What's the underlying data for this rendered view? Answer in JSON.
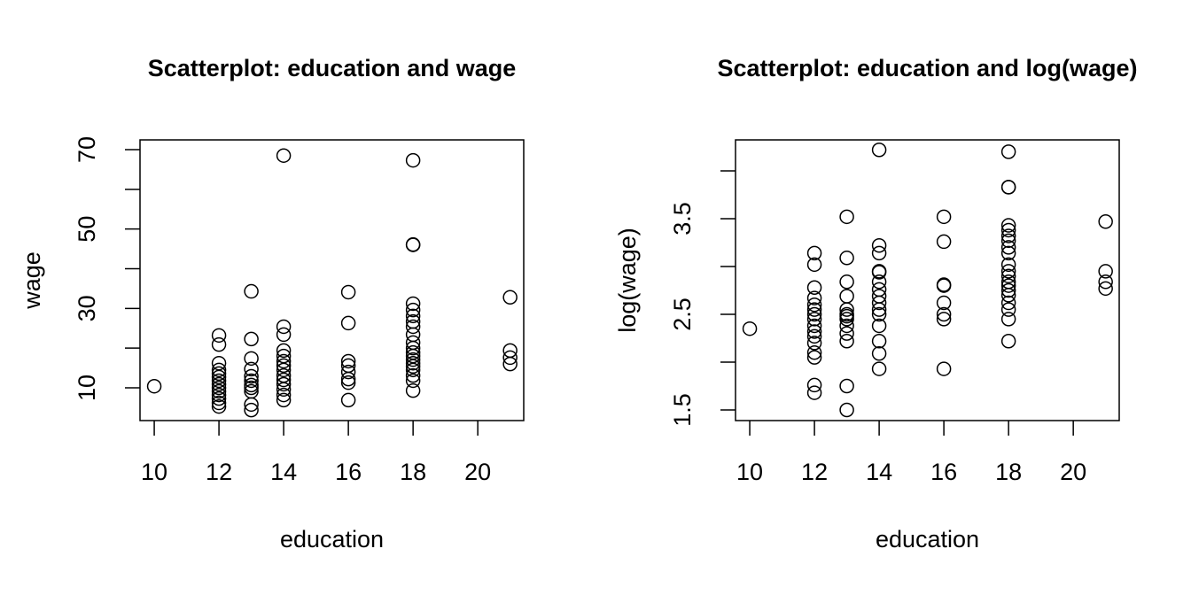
{
  "chart_data": [
    {
      "type": "scatter",
      "title": "Scatterplot: education and wage",
      "x_label": "education",
      "y_label": "wage",
      "color": "#000000",
      "xlim": [
        9.56,
        21.42
      ],
      "ylim": [
        1.75,
        72.45
      ],
      "xticks": [
        10,
        12,
        14,
        16,
        18,
        20
      ],
      "yticks": [
        10,
        {
          "value": 20,
          "label": null
        },
        30,
        {
          "value": 40,
          "label": null
        },
        50,
        {
          "value": 60,
          "label": null
        },
        70
      ],
      "x": [
        10,
        12,
        12,
        12,
        12,
        12,
        12,
        12,
        12,
        12,
        12,
        12,
        12,
        12,
        12,
        13,
        13,
        13,
        13,
        13,
        13,
        13,
        13,
        13,
        13,
        13,
        14,
        14,
        14,
        14,
        14,
        14,
        14,
        14,
        14,
        14,
        14,
        14,
        14,
        14,
        16,
        16,
        16,
        16,
        16,
        16,
        16,
        16,
        18,
        18,
        18,
        18,
        18,
        18,
        18,
        18,
        18,
        18,
        18,
        18,
        18,
        18,
        18,
        18,
        18,
        18,
        18,
        18,
        21,
        21,
        21,
        21
      ],
      "y": [
        10.4,
        23.2,
        20.9,
        16.2,
        14.5,
        13.6,
        12.7,
        11.8,
        10.9,
        10,
        9.1,
        8.2,
        7.3,
        6.2,
        5.3,
        34.3,
        22.3,
        17.4,
        14.7,
        12.9,
        11.8,
        10.7,
        10,
        9.1,
        5.8,
        4.4,
        68.5,
        25.4,
        23.4,
        19.4,
        18,
        16.7,
        15.6,
        14.5,
        13.1,
        12,
        10.9,
        9.6,
        8.2,
        6.9,
        34.1,
        26.3,
        16.7,
        15.6,
        14,
        12.2,
        11.3,
        6.9,
        67.3,
        46.1,
        46,
        31.2,
        29.6,
        28.1,
        26.7,
        25.4,
        23.4,
        21.4,
        20,
        18.9,
        18,
        17.1,
        16.2,
        15.4,
        14.5,
        13.1,
        11.8,
        9.3,
        32.8,
        19.4,
        17.6,
        16
      ]
    },
    {
      "type": "scatter",
      "title": "Scatterplot: education and log(wage)",
      "x_label": "education",
      "y_label": "log(wage)",
      "color": "#000000",
      "xlim": [
        9.56,
        21.42
      ],
      "ylim": [
        1.389,
        4.324
      ],
      "xticks": [
        10,
        12,
        14,
        16,
        18,
        20
      ],
      "yticks": [
        1.5,
        {
          "value": 2,
          "label": null
        },
        2.5,
        {
          "value": 3,
          "label": null
        },
        3.5,
        {
          "value": 4,
          "label": null
        }
      ],
      "x": [
        10,
        12,
        12,
        12,
        12,
        12,
        12,
        12,
        12,
        12,
        12,
        12,
        12,
        12,
        12,
        12,
        12,
        13,
        13,
        13,
        13,
        13,
        13,
        13,
        13,
        13,
        13,
        13,
        13,
        13,
        14,
        14,
        14,
        14,
        14,
        14,
        14,
        14,
        14,
        14,
        14,
        14,
        14,
        14,
        14,
        16,
        16,
        16,
        16,
        16,
        16,
        16,
        16,
        18,
        18,
        18,
        18,
        18,
        18,
        18,
        18,
        18,
        18,
        18,
        18,
        18,
        18,
        18,
        18,
        18,
        18,
        18,
        18,
        21,
        21,
        21,
        21
      ],
      "y": [
        2.35,
        3.14,
        3.02,
        2.78,
        2.67,
        2.6,
        2.55,
        2.5,
        2.45,
        2.38,
        2.32,
        2.27,
        2.2,
        2.1,
        2.05,
        1.76,
        1.68,
        3.52,
        3.09,
        2.84,
        2.69,
        2.55,
        2.5,
        2.48,
        2.45,
        2.38,
        2.3,
        2.22,
        1.75,
        1.5,
        4.22,
        3.22,
        3.14,
        2.95,
        2.94,
        2.84,
        2.76,
        2.69,
        2.62,
        2.55,
        2.5,
        2.38,
        2.22,
        2.09,
        1.93,
        3.52,
        3.26,
        2.81,
        2.8,
        2.62,
        2.5,
        2.45,
        1.93,
        4.2,
        3.83,
        3.83,
        3.43,
        3.38,
        3.32,
        3.27,
        3.2,
        3.14,
        3.02,
        2.95,
        2.9,
        2.84,
        2.8,
        2.75,
        2.7,
        2.62,
        2.55,
        2.45,
        2.22,
        3.47,
        2.95,
        2.84,
        2.77
      ]
    }
  ]
}
